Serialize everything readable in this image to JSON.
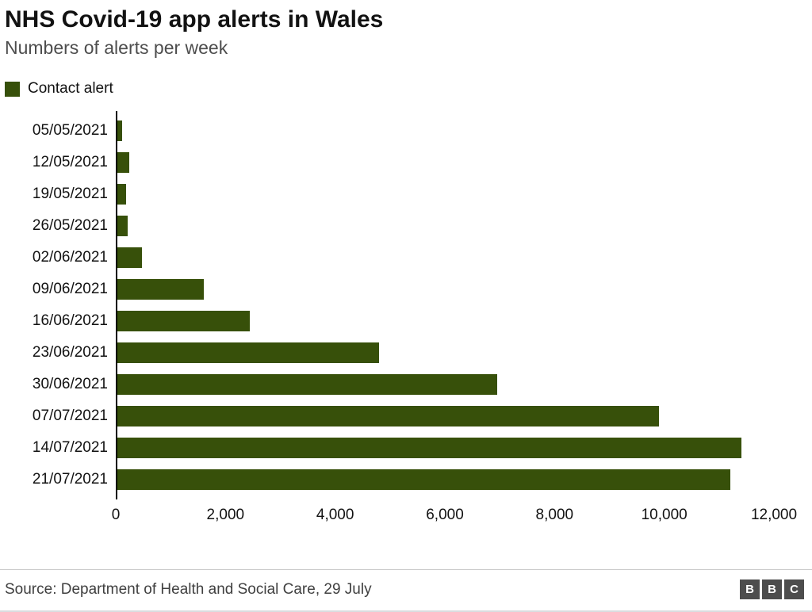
{
  "header": {
    "title": "NHS Covid-19 app alerts in Wales",
    "subtitle": "Numbers of alerts per week"
  },
  "legend": {
    "label": "Contact alert"
  },
  "chart_data": {
    "type": "bar",
    "orientation": "horizontal",
    "title": "NHS Covid-19 app alerts in Wales",
    "subtitle": "Numbers of alerts per week",
    "series_name": "Contact alert",
    "categories": [
      "05/05/2021",
      "12/05/2021",
      "19/05/2021",
      "26/05/2021",
      "02/06/2021",
      "09/06/2021",
      "16/06/2021",
      "23/06/2021",
      "30/06/2021",
      "07/07/2021",
      "14/07/2021",
      "21/07/2021"
    ],
    "values": [
      120,
      240,
      190,
      210,
      480,
      1600,
      2450,
      4800,
      6950,
      9900,
      11400,
      11200
    ],
    "xlim": [
      0,
      12000
    ],
    "xticks": [
      0,
      2000,
      4000,
      6000,
      8000,
      10000,
      12000
    ],
    "xtick_labels": [
      "0",
      "2,000",
      "4,000",
      "6,000",
      "8,000",
      "10,000",
      "12,000"
    ],
    "bar_color": "#37500a",
    "grid": false,
    "legend_position": "top-left"
  },
  "footer": {
    "source": "Source: Department of Health and Social Care, 29 July",
    "logo_letters": [
      "B",
      "B",
      "C"
    ]
  }
}
